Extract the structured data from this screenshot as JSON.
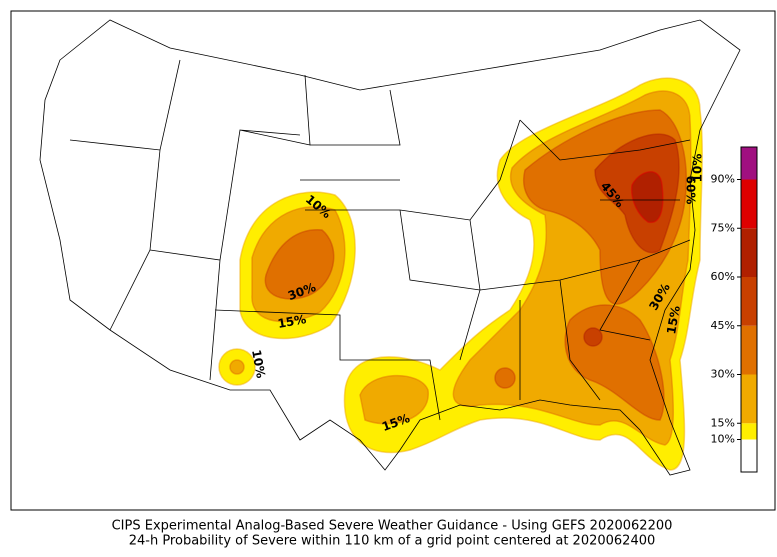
{
  "map": {
    "caption": [
      "CIPS Experimental Analog-Based Severe Weather Guidance - Using GEFS 2020062200",
      "24-h Probability of Severe within 110 km of a grid point centered at 2020062400"
    ],
    "colorbar": {
      "lim": [
        0,
        100
      ],
      "levels": [
        0,
        10,
        15,
        30,
        45,
        60,
        75,
        90,
        100
      ],
      "colors": [
        "#ffffff",
        "#ffee00",
        "#f0aa00",
        "#e07000",
        "#c84000",
        "#b02000",
        "#dd0000",
        "#a01080"
      ],
      "ticks": [
        {
          "value": 10,
          "label": "10%"
        },
        {
          "value": 15,
          "label": "15%"
        },
        {
          "value": 30,
          "label": "30%"
        },
        {
          "value": 45,
          "label": "45%"
        },
        {
          "value": 60,
          "label": "60%"
        },
        {
          "value": 75,
          "label": "75%"
        },
        {
          "value": 90,
          "label": "90%"
        }
      ]
    },
    "contour_labels": [
      "10%",
      "30%",
      "15%",
      "10%",
      "15%",
      "45%",
      "60%",
      "10%",
      "30%",
      "15%"
    ]
  }
}
